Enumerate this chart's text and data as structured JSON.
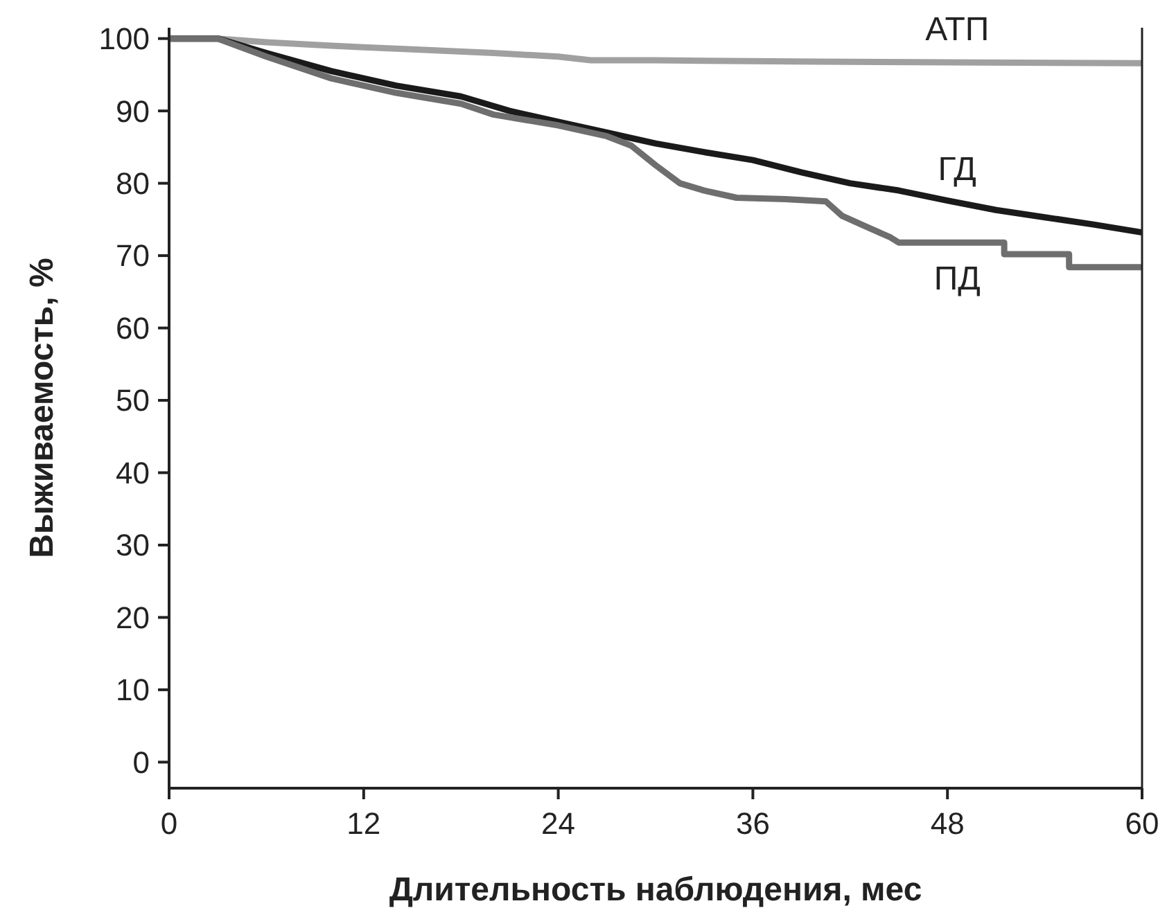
{
  "chart_data": {
    "type": "line",
    "xlabel": "Длительность наблюдения, мес",
    "ylabel": "Выживаемость, %",
    "xlim": [
      0,
      60
    ],
    "ylim": [
      -3.6,
      101.5
    ],
    "xticks": [
      0,
      12,
      24,
      36,
      48,
      60
    ],
    "yticks": [
      0,
      10,
      20,
      30,
      40,
      50,
      60,
      70,
      80,
      90,
      100
    ],
    "grid": false,
    "marker": "none",
    "line_style": "solid",
    "series": [
      {
        "name": "АТП",
        "color": "#a0a0a0",
        "x": [
          0,
          3,
          6,
          10,
          15,
          20,
          24,
          26,
          30,
          40,
          50,
          60
        ],
        "values": [
          100,
          100,
          99.5,
          99,
          98.5,
          98,
          97.5,
          97,
          97,
          96.8,
          96.7,
          96.6
        ]
      },
      {
        "name": "ГД",
        "color": "#1a1a1a",
        "x": [
          0,
          3,
          6,
          10,
          14,
          18,
          21,
          24,
          27,
          30,
          33,
          36,
          39,
          42,
          45,
          48,
          51,
          54,
          57,
          60
        ],
        "values": [
          100,
          100,
          98,
          95.5,
          93.5,
          92,
          90,
          88.5,
          87,
          85.5,
          84.3,
          83.2,
          81.5,
          80,
          79,
          77.6,
          76.3,
          75.3,
          74.3,
          73.2
        ]
      },
      {
        "name": "ПД",
        "color": "#6e6e6e",
        "x": [
          0,
          3,
          6,
          10,
          14,
          18,
          20,
          24,
          27,
          28.5,
          30,
          31.5,
          33,
          35,
          38,
          40.5,
          41.5,
          43,
          44.5,
          45,
          51.5,
          51.5,
          55.5,
          55.5,
          60
        ],
        "values": [
          100,
          100,
          97.5,
          94.5,
          92.5,
          91,
          89.5,
          88,
          86.5,
          85.2,
          82.5,
          80,
          79,
          78,
          77.8,
          77.5,
          75.5,
          74,
          72.5,
          71.8,
          71.8,
          70.2,
          70.2,
          68.4,
          68.4
        ]
      }
    ]
  }
}
